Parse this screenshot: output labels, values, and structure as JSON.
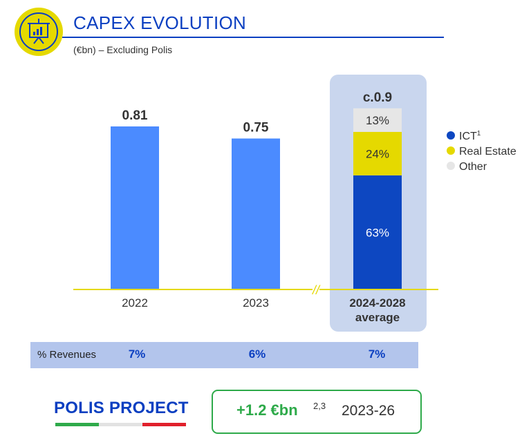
{
  "header": {
    "title": "CAPEX EVOLUTION",
    "subtitle": "(€bn) – Excluding Polis",
    "icon": "presentation-chart-icon"
  },
  "colors": {
    "brand_blue": "#0b3fc1",
    "bar_blue": "#4b8bff",
    "ict": "#0d47c1",
    "real_estate": "#e5d900",
    "other": "#e6e6e6",
    "highlight": "#c9d6ee",
    "axis": "#e5d900",
    "polis_green": "#2eaa4a"
  },
  "chart_data": {
    "type": "bar",
    "categories": [
      "2022",
      "2023",
      "2024-2028 average"
    ],
    "values": [
      0.81,
      0.75,
      0.9
    ],
    "value_labels": [
      "0.81",
      "0.75",
      "c.0.9"
    ],
    "x_labels": [
      {
        "lines": [
          "2022"
        ],
        "bold": false
      },
      {
        "lines": [
          "2023"
        ],
        "bold": false
      },
      {
        "lines": [
          "2024-2028",
          "average"
        ],
        "bold": true
      }
    ],
    "breakdown": {
      "category": "2024-2028 average",
      "segments": [
        {
          "name": "ICT",
          "sup": "1",
          "percent": 63,
          "label": "63%",
          "color": "#0d47c1"
        },
        {
          "name": "Real Estate",
          "sup": "",
          "percent": 24,
          "label": "24%",
          "color": "#e5d900"
        },
        {
          "name": "Other",
          "sup": "",
          "percent": 13,
          "label": "13%",
          "color": "#e6e6e6"
        }
      ]
    },
    "axis_break": "//",
    "ylim": [
      0,
      1.0
    ],
    "legend_position": "right"
  },
  "revenues_row": {
    "label": "% Revenues",
    "values": [
      "7%",
      "6%",
      "7%"
    ]
  },
  "polis": {
    "title": "POLIS PROJECT",
    "amount": "+1.2 €bn",
    "superscript": "2,3",
    "period": "2023-26"
  }
}
